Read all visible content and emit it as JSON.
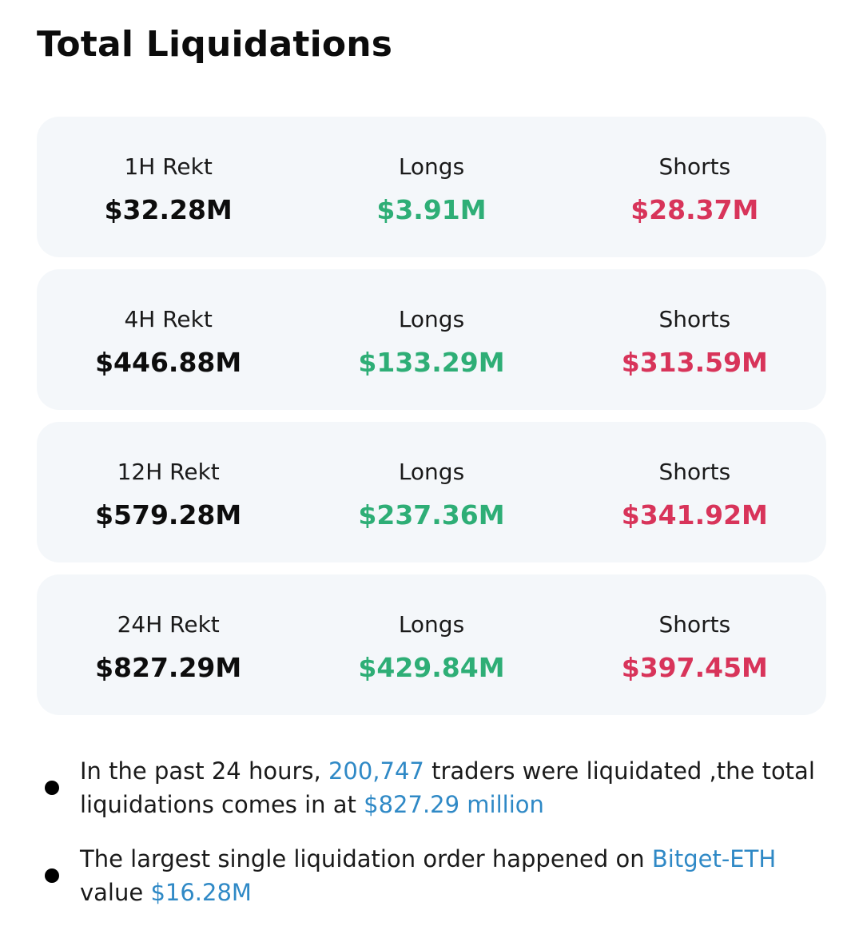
{
  "header": {
    "title": "Total Liquidations"
  },
  "colors": {
    "long": "#2eae76",
    "short": "#d8345a",
    "link": "#2f89c6",
    "card_bg": "#f4f7fa"
  },
  "cards": [
    {
      "period_label": "1H Rekt",
      "total": "$32.28M",
      "longs_label": "Longs",
      "longs": "$3.91M",
      "shorts_label": "Shorts",
      "shorts": "$28.37M"
    },
    {
      "period_label": "4H Rekt",
      "total": "$446.88M",
      "longs_label": "Longs",
      "longs": "$133.29M",
      "shorts_label": "Shorts",
      "shorts": "$313.59M"
    },
    {
      "period_label": "12H Rekt",
      "total": "$579.28M",
      "longs_label": "Longs",
      "longs": "$237.36M",
      "shorts_label": "Shorts",
      "shorts": "$341.92M"
    },
    {
      "period_label": "24H Rekt",
      "total": "$827.29M",
      "longs_label": "Longs",
      "longs": "$429.84M",
      "shorts_label": "Shorts",
      "shorts": "$397.45M"
    }
  ],
  "notes": [
    {
      "part1": "In the past 24 hours, ",
      "traders": "200,747",
      "part2": " traders were liquidated ,the total liquidations comes in at ",
      "amount": "$827.29 million"
    },
    {
      "part1": "The largest single liquidation order happened on ",
      "exchange": "Bitget-ETH",
      "part2": " value ",
      "amount": "$16.28M"
    }
  ]
}
